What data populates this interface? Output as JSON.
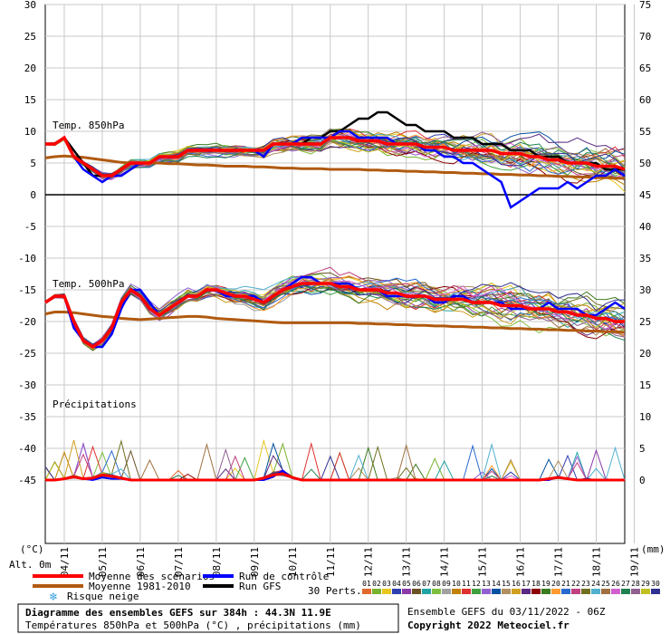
{
  "chart_data": {
    "type": "line",
    "title": "Diagramme des ensembles GEFS sur 384h : 44.3N 11.9E",
    "subtitle": "Températures 850hPa et 500hPa (°C) , précipitations (mm)",
    "left_axis_unit": "(°C)",
    "right_axis_unit": "(mm)",
    "altitude_label": "Alt. 0m",
    "x_ticks": [
      "04/11",
      "05/11",
      "06/11",
      "07/11",
      "08/11",
      "09/11",
      "10/11",
      "11/11",
      "12/11",
      "13/11",
      "14/11",
      "15/11",
      "16/11",
      "17/11",
      "18/11",
      "19/11"
    ],
    "left_ticks": [
      30,
      25,
      20,
      15,
      10,
      5,
      0,
      -5,
      -10,
      -15,
      -20,
      -25,
      -30,
      -35,
      -40,
      -45
    ],
    "right_ticks": [
      75,
      70,
      65,
      60,
      55,
      50,
      45,
      40,
      35,
      30,
      25,
      20,
      15,
      10,
      5,
      0
    ],
    "ylim": [
      -45,
      30
    ],
    "panels": {
      "t850": "Temp. 850hPa",
      "t500": "Temp. 500hPa",
      "precip": "Précipitations"
    },
    "step_hours": 6,
    "ensemble_colors": [
      "#e0692c",
      "#79b32e",
      "#e9c61e",
      "#2f3fb0",
      "#8b3aa8",
      "#6b5226",
      "#22a3a3",
      "#7fbf3f",
      "#a0a0a0",
      "#c08000",
      "#e03030",
      "#40a040",
      "#9060d0",
      "#0050a0",
      "#b09060",
      "#d0a020",
      "#5a2a80",
      "#8b0000",
      "#3a7a20",
      "#ff9a30",
      "#2a6ad0",
      "#c04080",
      "#707020",
      "#50b0d0",
      "#a07040",
      "#d060d0",
      "#208050",
      "#906090",
      "#c0c020",
      "#303090"
    ],
    "series": {
      "moyenne_scenarios": {
        "t850": [
          8,
          8,
          9,
          6,
          5,
          4,
          3,
          3,
          4,
          5,
          5,
          5,
          6,
          6,
          6,
          7,
          7,
          7,
          7,
          7,
          7,
          7,
          7,
          7,
          8,
          8,
          8,
          8,
          8,
          8,
          9,
          9,
          9,
          8.5,
          8.5,
          8.5,
          8,
          8,
          8,
          8,
          7.5,
          7.5,
          7.5,
          7,
          7,
          7,
          7,
          7,
          6.5,
          6.5,
          6.5,
          6,
          6,
          5.5,
          5.5,
          5,
          5,
          5,
          4.5,
          4.5,
          4.5,
          4
        ],
        "t500": [
          -17,
          -16,
          -16,
          -20,
          -23,
          -24,
          -23,
          -21,
          -17,
          -15,
          -16,
          -18,
          -19,
          -18,
          -17,
          -16,
          -16,
          -15,
          -15,
          -15.5,
          -16,
          -16,
          -16.5,
          -17,
          -16,
          -15,
          -14.5,
          -14,
          -14,
          -14,
          -14,
          -14.5,
          -14.5,
          -15,
          -15,
          -15,
          -15.5,
          -15.5,
          -16,
          -16,
          -16,
          -16.5,
          -16.5,
          -16.5,
          -16.5,
          -17,
          -17,
          -17,
          -17.5,
          -17.5,
          -17.5,
          -18,
          -18,
          -18,
          -18.5,
          -18.5,
          -19,
          -19,
          -19.5,
          -19.5,
          -20,
          -20
        ],
        "precip": [
          0,
          0,
          0.2,
          0.5,
          0.2,
          0.3,
          0.8,
          0.6,
          0.3,
          0,
          0,
          0,
          0,
          0,
          0,
          0,
          0,
          0,
          0,
          0,
          0,
          0,
          0,
          0.3,
          0.8,
          1,
          0.4,
          0,
          0,
          0,
          0,
          0,
          0,
          0,
          0,
          0,
          0,
          0,
          0,
          0,
          0,
          0,
          0,
          0,
          0,
          0,
          0,
          0,
          0,
          0,
          0,
          0,
          0,
          0.2,
          0.4,
          0.2,
          0,
          0,
          0,
          0,
          0,
          0
        ]
      },
      "moyenne_1981_2010": {
        "t850": [
          5.8,
          6,
          6.1,
          6,
          5.9,
          5.7,
          5.5,
          5.3,
          5.1,
          5,
          5,
          5,
          5,
          4.9,
          4.9,
          4.8,
          4.7,
          4.7,
          4.6,
          4.5,
          4.5,
          4.5,
          4.4,
          4.4,
          4.3,
          4.2,
          4.2,
          4.1,
          4.1,
          4.1,
          4,
          4,
          4,
          4,
          3.9,
          3.9,
          3.8,
          3.8,
          3.7,
          3.7,
          3.6,
          3.6,
          3.5,
          3.5,
          3.4,
          3.4,
          3.3,
          3.3,
          3.2,
          3.2,
          3.1,
          3.1,
          3,
          3,
          2.9,
          2.9,
          2.8,
          2.8,
          2.7,
          2.7,
          2.6,
          2.6
        ],
        "t500": [
          -18.8,
          -18.5,
          -18.5,
          -18.6,
          -18.8,
          -19,
          -19.2,
          -19.3,
          -19.5,
          -19.6,
          -19.7,
          -19.6,
          -19.5,
          -19.4,
          -19.3,
          -19.2,
          -19.2,
          -19.3,
          -19.5,
          -19.6,
          -19.7,
          -19.8,
          -19.9,
          -20,
          -20.1,
          -20.2,
          -20.2,
          -20.2,
          -20.2,
          -20.2,
          -20.2,
          -20.2,
          -20.2,
          -20.3,
          -20.3,
          -20.4,
          -20.4,
          -20.5,
          -20.5,
          -20.6,
          -20.6,
          -20.7,
          -20.7,
          -20.8,
          -20.8,
          -20.9,
          -20.9,
          -21,
          -21,
          -21.1,
          -21.1,
          -21.2,
          -21.2,
          -21.3,
          -21.3,
          -21.4,
          -21.4,
          -21.5,
          -21.5,
          -21.6,
          -21.6,
          -21.7
        ]
      },
      "run_controle": {
        "t850": [
          8,
          8,
          9,
          6,
          4,
          3,
          2,
          3,
          3,
          4,
          5,
          5,
          6,
          6,
          6,
          7,
          7,
          7,
          7,
          7,
          7,
          7,
          7,
          6,
          8,
          8,
          8,
          9,
          9,
          9,
          9,
          10,
          10,
          9,
          9,
          9,
          9,
          8,
          8,
          8,
          7,
          7,
          6,
          6,
          5,
          5,
          4,
          3,
          2,
          -2,
          -1,
          0,
          1,
          1,
          1,
          2,
          1,
          2,
          3,
          3,
          4,
          3
        ],
        "t500": [
          -17,
          -16,
          -16,
          -21,
          -23,
          -24,
          -24,
          -22,
          -18,
          -15,
          -15,
          -17,
          -19,
          -18,
          -17,
          -16,
          -16,
          -15,
          -15,
          -16,
          -16,
          -16,
          -16,
          -17,
          -16,
          -15,
          -14,
          -13,
          -13,
          -14,
          -14,
          -14,
          -14,
          -15,
          -15,
          -15,
          -16,
          -16,
          -16,
          -16,
          -16,
          -17,
          -17,
          -16,
          -16,
          -17,
          -17,
          -17,
          -17,
          -18,
          -18,
          -18,
          -18,
          -17,
          -18,
          -18,
          -18,
          -19,
          -19,
          -18,
          -17,
          -18
        ],
        "precip": [
          0,
          0,
          0.2,
          0.5,
          0.2,
          0,
          0.4,
          0.2,
          0.2,
          0,
          0,
          0,
          0,
          0,
          0,
          0,
          0,
          0,
          0,
          0,
          0,
          0,
          0,
          0,
          0.5,
          1.5,
          0.3,
          0,
          0,
          0,
          0,
          0,
          0,
          0,
          0,
          0,
          0,
          0,
          0,
          0,
          0,
          0,
          0,
          0,
          0,
          0,
          0,
          0,
          0,
          0,
          0,
          0,
          0,
          0,
          0.5,
          0.2,
          0,
          0,
          0,
          0,
          0,
          0
        ]
      },
      "run_gfs": {
        "t850": [
          8,
          8,
          9,
          7,
          5,
          3,
          3,
          3,
          3,
          4,
          5,
          5,
          6,
          6,
          6,
          7,
          7,
          7,
          7,
          7,
          7,
          7,
          7,
          7,
          8,
          8,
          8,
          8,
          9,
          9,
          10,
          10,
          11,
          12,
          12,
          13,
          13,
          12,
          11,
          11,
          10,
          10,
          10,
          9,
          9,
          9,
          8,
          8,
          8,
          7,
          7,
          7,
          6,
          6,
          6,
          5,
          5,
          5,
          5,
          4,
          4,
          4
        ]
      },
      "legend": {
        "moyenne_scenarios": "Moyenne des scénarios",
        "moyenne_1981_2010": "Moyenne 1981-2010",
        "risque_neige": "Risque neige",
        "run_controle": "Run de contrôle",
        "run_gfs": "Run GFS",
        "perts": "30 Perts."
      },
      "pert_labels": [
        "01",
        "02",
        "03",
        "04",
        "05",
        "06",
        "07",
        "08",
        "09",
        "10",
        "11",
        "12",
        "13",
        "14",
        "15",
        "16",
        "17",
        "18",
        "19",
        "20",
        "21",
        "22",
        "23",
        "24",
        "25",
        "26",
        "27",
        "28",
        "29",
        "30"
      ]
    }
  },
  "footer": {
    "ensemble": "Ensemble GEFS du 03/11/2022 - 06Z",
    "copyright": "Copyright 2022 Meteociel.fr"
  }
}
